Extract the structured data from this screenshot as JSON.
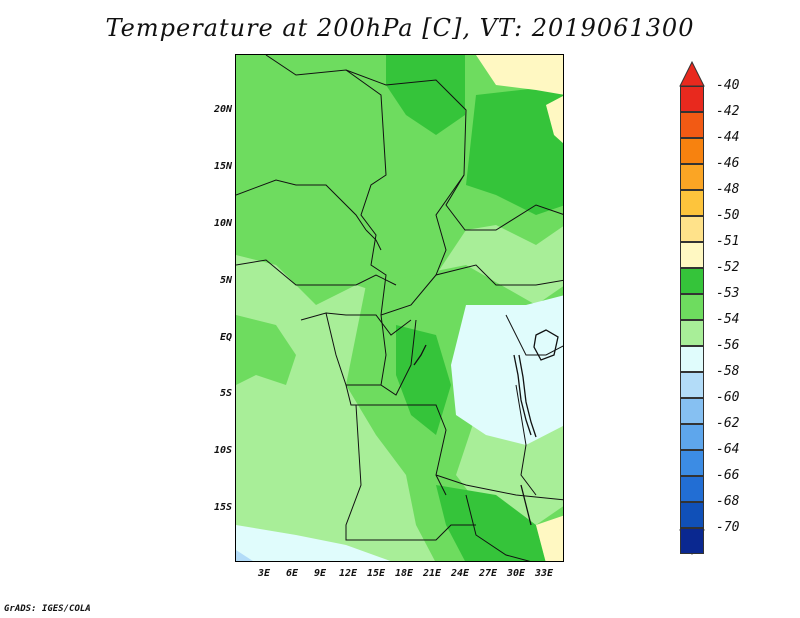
{
  "title": "Temperature at 200hPa [C], VT: 2019061300",
  "credit": "GrADS: IGES/COLA",
  "lat_labels": [
    "20N",
    "15N",
    "10N",
    "5N",
    "EQ",
    "5S",
    "10S",
    "15S"
  ],
  "lon_labels": [
    "3E",
    "6E",
    "9E",
    "12E",
    "15E",
    "18E",
    "21E",
    "24E",
    "27E",
    "30E",
    "33E"
  ],
  "colorbar": [
    {
      "label": "-40",
      "color": "#e8291e"
    },
    {
      "label": "-42",
      "color": "#f25a14"
    },
    {
      "label": "-44",
      "color": "#f7820f"
    },
    {
      "label": "-46",
      "color": "#fba524"
    },
    {
      "label": "-48",
      "color": "#fdc43c"
    },
    {
      "label": "-50",
      "color": "#ffe28a"
    },
    {
      "label": "-51",
      "color": "#fff8c2"
    },
    {
      "label": "-52",
      "color": "#35c43a"
    },
    {
      "label": "-53",
      "color": "#6edc5f"
    },
    {
      "label": "-54",
      "color": "#a8ee98"
    },
    {
      "label": "-56",
      "color": "#e0fcfc"
    },
    {
      "label": "-58",
      "color": "#b3dcf8"
    },
    {
      "label": "-60",
      "color": "#86c0f2"
    },
    {
      "label": "-62",
      "color": "#5ea6ec"
    },
    {
      "label": "-64",
      "color": "#3c8ce4"
    },
    {
      "label": "-66",
      "color": "#226ed4"
    },
    {
      "label": "-68",
      "color": "#1050b8"
    },
    {
      "label": "-70",
      "color": "#0a2890"
    }
  ],
  "colorbar_bottom_color": "#dcd6f0"
}
